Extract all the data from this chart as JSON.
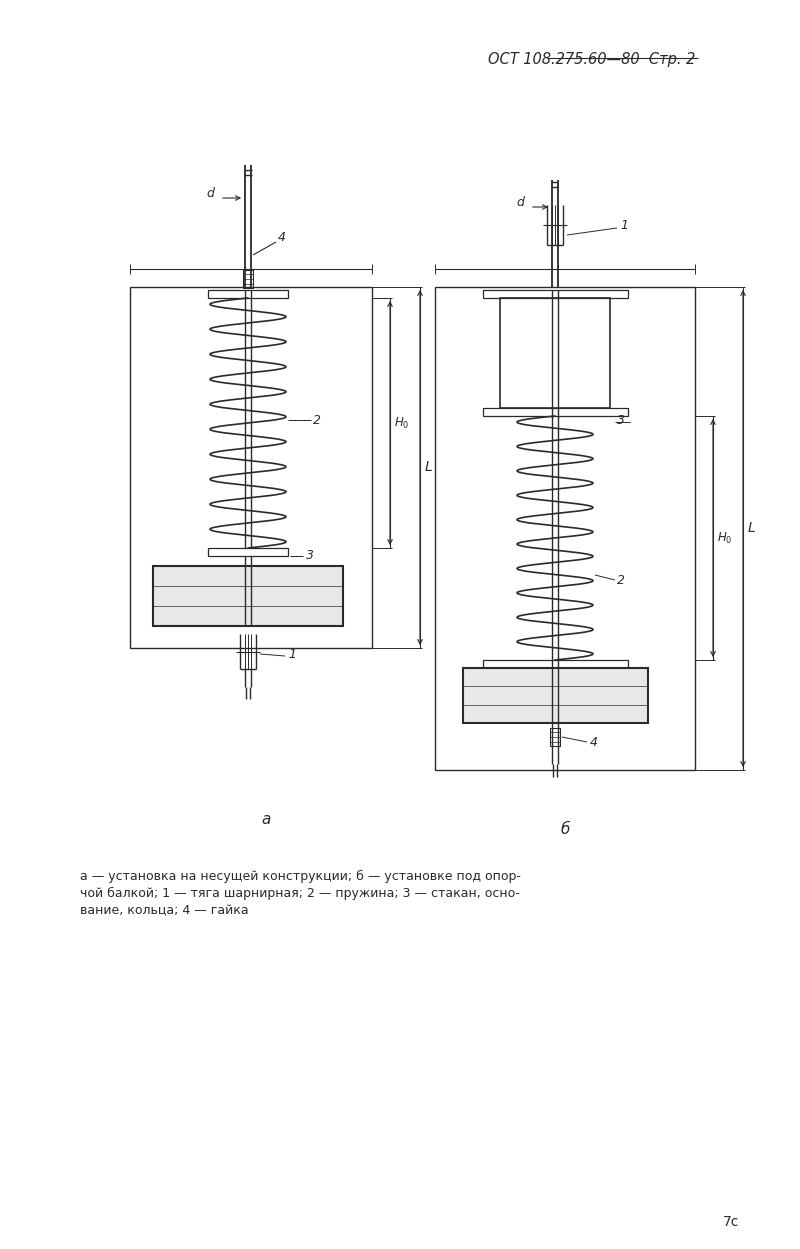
{
  "header_text": "ОСТ 108.275.60—80  Стр. 2",
  "page_num": "7с",
  "caption_line1": "а — установка на несущей конструкции; б — установке под опор-",
  "caption_line2": "чой балкой; 1 — тяга шарнирная; 2 — пружина; 3 — стакан, осно-",
  "caption_line3": "вание, кольца; 4 — гайка",
  "bg_color": "#ffffff",
  "line_color": "#2a2a2a"
}
